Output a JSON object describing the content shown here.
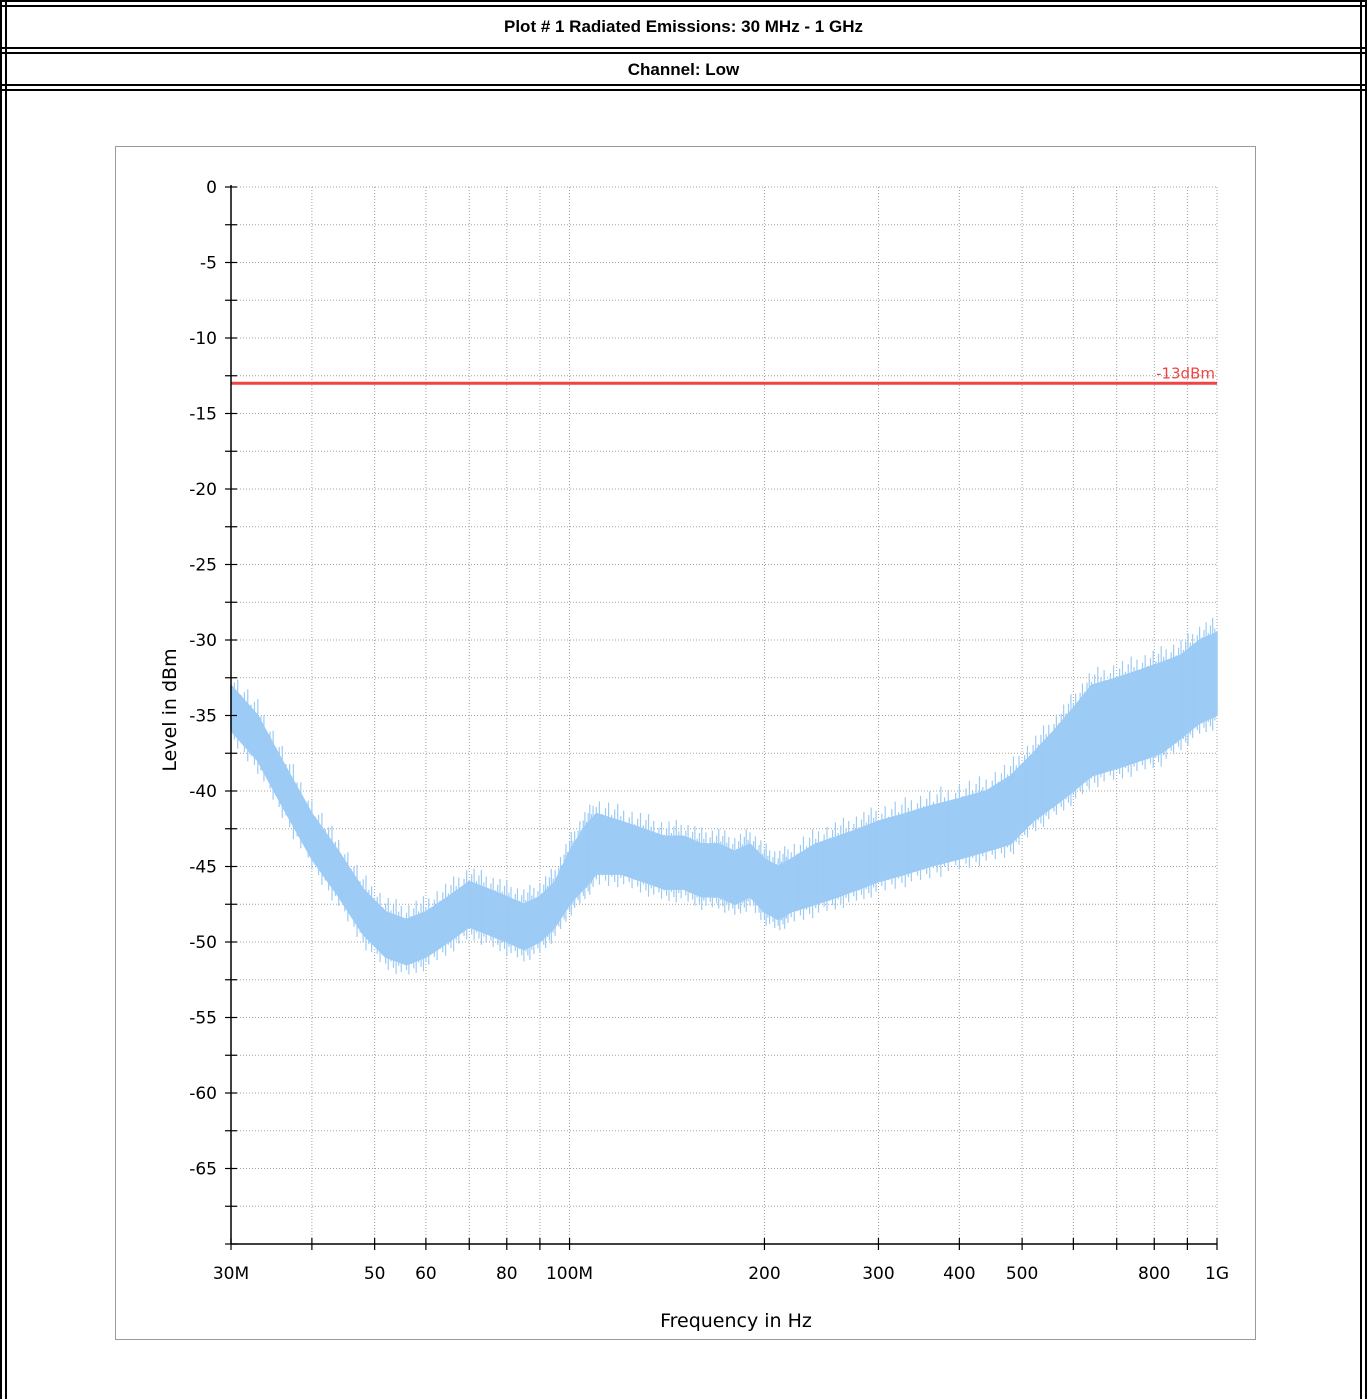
{
  "header": {
    "title": "Plot # 1 Radiated Emissions: 30 MHz - 1 GHz",
    "subtitle": "Channel: Low"
  },
  "chart_data": {
    "type": "line",
    "xlabel": "Frequency in Hz",
    "ylabel": "Level in dBm",
    "x_scale": "log",
    "xlim": [
      30000000,
      1000000000
    ],
    "ylim": [
      -70,
      0
    ],
    "grid": true,
    "x_ticks": [
      {
        "value": 30000000,
        "label": "30M"
      },
      {
        "value": 40000000,
        "label": ""
      },
      {
        "value": 50000000,
        "label": "50"
      },
      {
        "value": 60000000,
        "label": "60"
      },
      {
        "value": 70000000,
        "label": ""
      },
      {
        "value": 80000000,
        "label": "80"
      },
      {
        "value": 90000000,
        "label": ""
      },
      {
        "value": 100000000,
        "label": "100M"
      },
      {
        "value": 200000000,
        "label": "200"
      },
      {
        "value": 300000000,
        "label": "300"
      },
      {
        "value": 400000000,
        "label": "400"
      },
      {
        "value": 500000000,
        "label": "500"
      },
      {
        "value": 600000000,
        "label": ""
      },
      {
        "value": 700000000,
        "label": ""
      },
      {
        "value": 800000000,
        "label": "800"
      },
      {
        "value": 900000000,
        "label": ""
      },
      {
        "value": 1000000000,
        "label": "1G"
      }
    ],
    "y_ticks": [
      {
        "value": 0,
        "label": "0"
      },
      {
        "value": -5,
        "label": "-5"
      },
      {
        "value": -10,
        "label": "-10"
      },
      {
        "value": -15,
        "label": "-15"
      },
      {
        "value": -20,
        "label": "-20"
      },
      {
        "value": -25,
        "label": "-25"
      },
      {
        "value": -30,
        "label": "-30"
      },
      {
        "value": -35,
        "label": "-35"
      },
      {
        "value": -40,
        "label": "-40"
      },
      {
        "value": -45,
        "label": "-45"
      },
      {
        "value": -50,
        "label": "-50"
      },
      {
        "value": -55,
        "label": "-55"
      },
      {
        "value": -60,
        "label": "-60"
      },
      {
        "value": -65,
        "label": "-65"
      }
    ],
    "limit_line": {
      "value": -13,
      "label": "-13dBm",
      "color": "#ee4444"
    },
    "series": [
      {
        "color": "#9ccbf5",
        "x": [
          30000000,
          33000000,
          36000000,
          40000000,
          44000000,
          48000000,
          52000000,
          56000000,
          60000000,
          65000000,
          70000000,
          75000000,
          80000000,
          85000000,
          90000000,
          95000000,
          100000000,
          105000000,
          110000000,
          120000000,
          130000000,
          140000000,
          150000000,
          160000000,
          170000000,
          180000000,
          190000000,
          200000000,
          210000000,
          220000000,
          240000000,
          260000000,
          280000000,
          300000000,
          330000000,
          360000000,
          400000000,
          440000000,
          480000000,
          520000000,
          560000000,
          600000000,
          640000000,
          700000000,
          760000000,
          820000000,
          880000000,
          940000000,
          1000000000
        ],
        "y_min": [
          -36,
          -38,
          -41,
          -44.5,
          -47,
          -49.5,
          -51,
          -51.5,
          -51,
          -50,
          -49,
          -49.5,
          -50,
          -50.5,
          -50,
          -49,
          -47.5,
          -46.5,
          -45.5,
          -45.5,
          -46,
          -46.5,
          -46.5,
          -47,
          -47,
          -47.5,
          -47,
          -48,
          -48.5,
          -48,
          -47.5,
          -47,
          -46.5,
          -46,
          -45.5,
          -45,
          -44.5,
          -44,
          -43.5,
          -42,
          -41,
          -40,
          -39,
          -38.5,
          -38,
          -37.5,
          -36.5,
          -35.5,
          -35
        ],
        "y_max": [
          -33,
          -35,
          -38,
          -41.5,
          -44,
          -46.5,
          -48,
          -48.5,
          -48,
          -47,
          -46,
          -46.5,
          -47,
          -47.5,
          -47,
          -46,
          -44,
          -42.5,
          -41.5,
          -42,
          -42.5,
          -43,
          -43,
          -43.5,
          -43.5,
          -44,
          -43.5,
          -44.5,
          -45,
          -44.5,
          -43.5,
          -43,
          -42.5,
          -42,
          -41.5,
          -41,
          -40.5,
          -40,
          -39,
          -37.5,
          -36,
          -34.5,
          -33,
          -32.5,
          -32,
          -31.5,
          -31,
          -30,
          -29.5
        ]
      }
    ]
  }
}
